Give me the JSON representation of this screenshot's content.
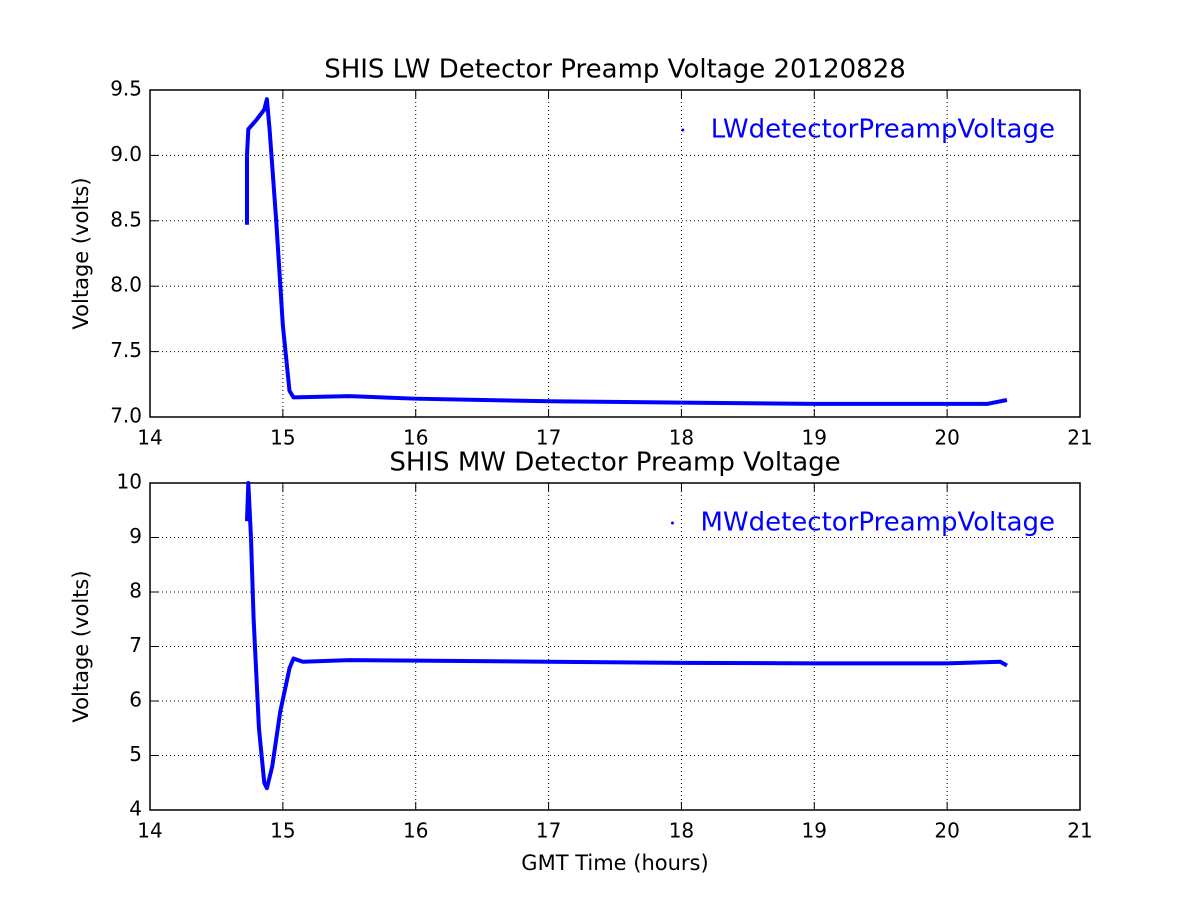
{
  "chart_data": [
    {
      "type": "line",
      "title": "SHIS LW Detector Preamp Voltage 20120828",
      "ylabel": "Voltage (volts)",
      "xlim": [
        14,
        21
      ],
      "xticks": [
        14,
        15,
        16,
        17,
        18,
        19,
        20,
        21
      ],
      "ylim": [
        7,
        9.5
      ],
      "yticks": [
        {
          "value": 7,
          "label": "7.0"
        },
        7.5,
        {
          "value": 8,
          "label": "8.0"
        },
        8.5,
        {
          "value": 9,
          "label": "9.0"
        },
        9.5
      ],
      "grid": true,
      "legend": "upper right",
      "x": [
        14.73,
        14.73,
        14.74,
        14.8,
        14.86,
        14.88,
        14.9,
        14.95,
        15.0,
        15.05,
        15.08,
        15.5,
        16,
        17,
        18,
        19,
        20,
        20.3,
        20.45
      ],
      "series": [
        {
          "name": "LWdetectorPreampVoltage",
          "color": "#0000ff",
          "values": [
            8.47,
            9.0,
            9.2,
            9.27,
            9.35,
            9.43,
            9.2,
            8.5,
            7.7,
            7.2,
            7.15,
            7.16,
            7.14,
            7.12,
            7.11,
            7.1,
            7.1,
            7.1,
            7.13
          ]
        }
      ]
    },
    {
      "type": "line",
      "title": "SHIS MW Detector Preamp Voltage",
      "ylabel": "Voltage (volts)",
      "xlabel": "GMT Time (hours)",
      "xlim": [
        14,
        21
      ],
      "xticks": [
        14,
        15,
        16,
        17,
        18,
        19,
        20,
        21
      ],
      "ylim": [
        4,
        10
      ],
      "yticks": [
        4,
        5,
        6,
        7,
        8,
        9,
        10
      ],
      "grid": true,
      "legend": "upper right",
      "x": [
        14.73,
        14.74,
        14.76,
        14.78,
        14.82,
        14.86,
        14.88,
        14.92,
        14.98,
        15.05,
        15.08,
        15.15,
        15.5,
        16,
        17,
        18,
        19,
        20,
        20.4,
        20.45
      ],
      "series": [
        {
          "name": "MWdetectorPreampVoltage",
          "color": "#0000ff",
          "values": [
            9.3,
            10.0,
            9.0,
            7.5,
            5.5,
            4.5,
            4.4,
            4.8,
            5.8,
            6.6,
            6.78,
            6.72,
            6.75,
            6.74,
            6.72,
            6.7,
            6.69,
            6.69,
            6.72,
            6.65
          ]
        }
      ]
    }
  ]
}
